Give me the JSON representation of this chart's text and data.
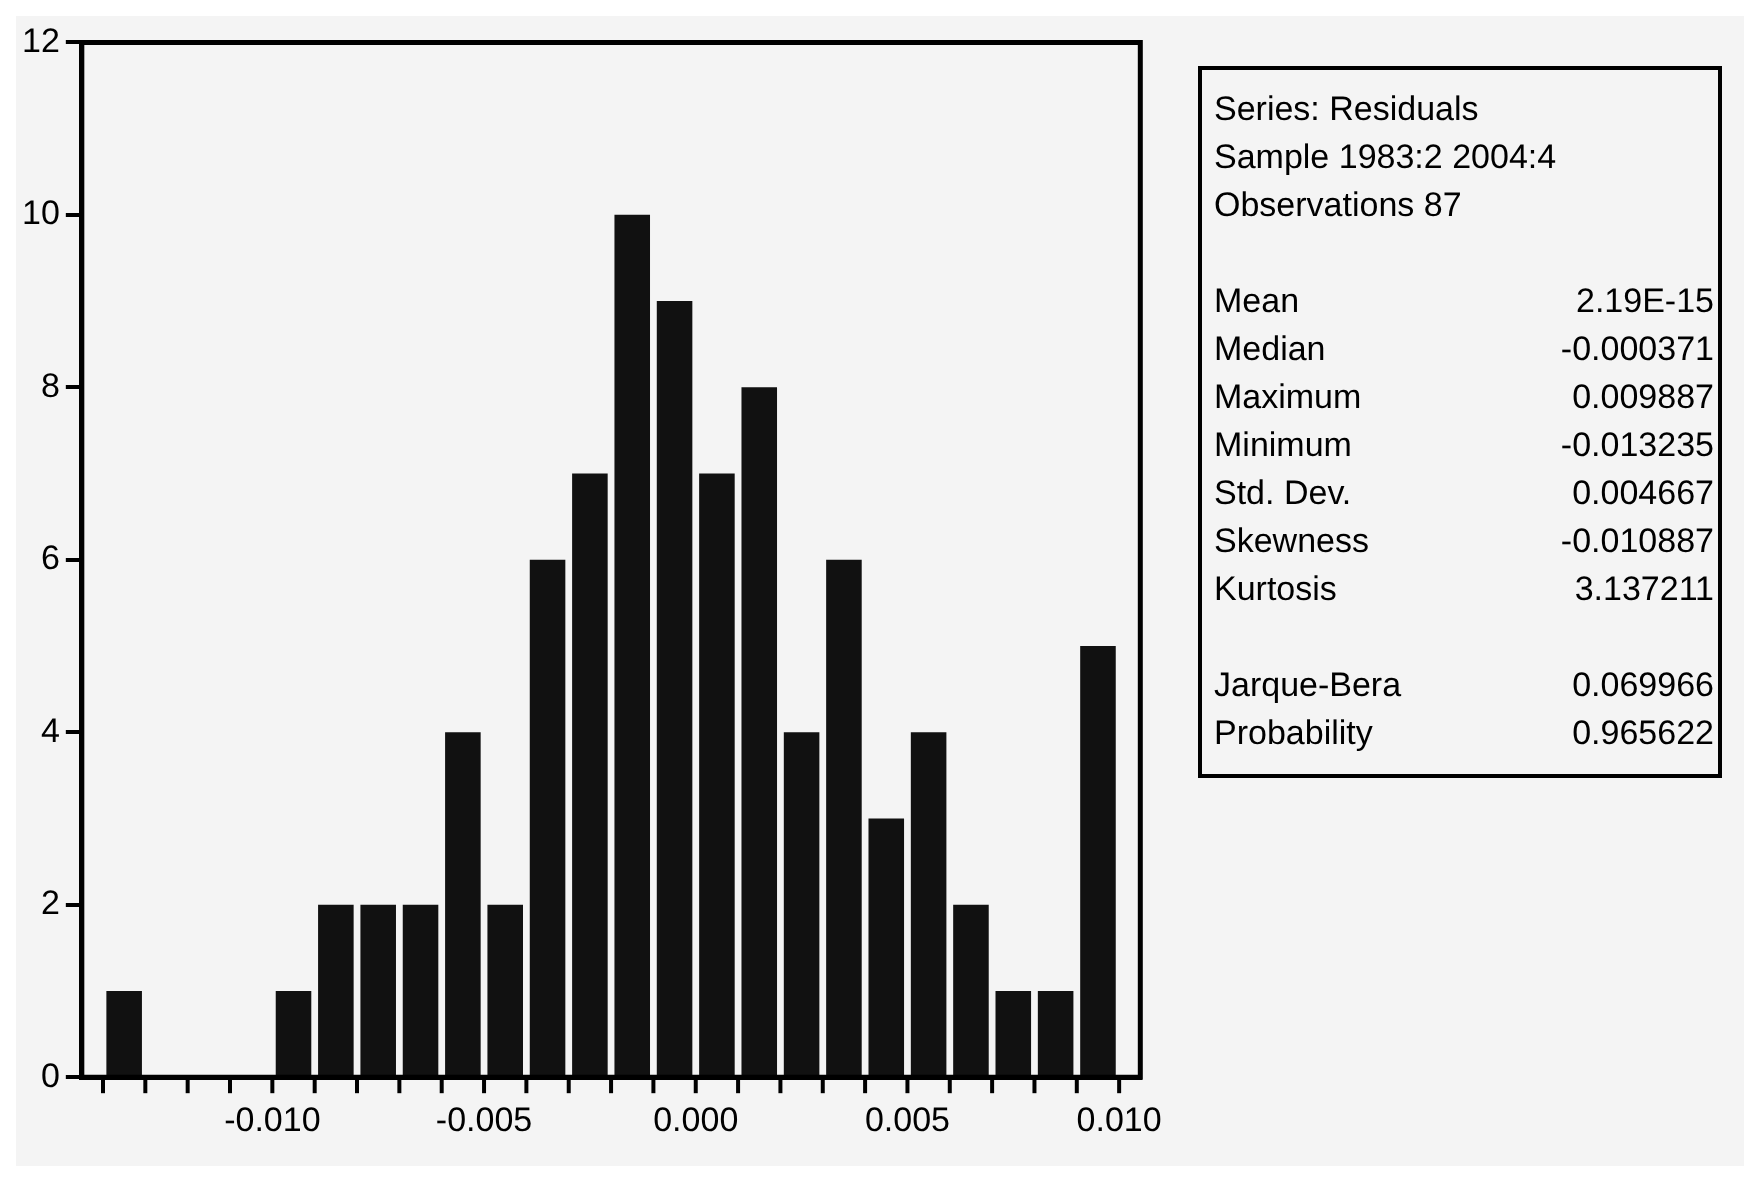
{
  "chart_data": {
    "type": "histogram",
    "bins": [
      -0.014,
      -0.013,
      -0.012,
      -0.011,
      -0.01,
      -0.009,
      -0.008,
      -0.007,
      -0.006,
      -0.005,
      -0.004,
      -0.003,
      -0.002,
      -0.001,
      0,
      0.001,
      0.002,
      0.003,
      0.004,
      0.005,
      0.006,
      0.007,
      0.008,
      0.009,
      0.01
    ],
    "values": [
      1,
      0,
      0,
      0,
      1,
      2,
      2,
      2,
      4,
      2,
      6,
      7,
      10,
      9,
      7,
      8,
      4,
      6,
      3,
      4,
      2,
      1,
      1,
      5
    ],
    "color": "#111111",
    "xlim": [
      -0.0145,
      0.0105
    ],
    "xticks": [
      {
        "value": -0.014,
        "label": null
      },
      {
        "value": -0.013,
        "label": null
      },
      {
        "value": -0.012,
        "label": null
      },
      {
        "value": -0.011,
        "label": null
      },
      {
        "value": -0.01,
        "label": "-0.010"
      },
      {
        "value": -0.009,
        "label": null
      },
      {
        "value": -0.008,
        "label": null
      },
      {
        "value": -0.007,
        "label": null
      },
      {
        "value": -0.006,
        "label": null
      },
      {
        "value": -0.005,
        "label": "-0.005"
      },
      {
        "value": -0.004,
        "label": null
      },
      {
        "value": -0.003,
        "label": null
      },
      {
        "value": -0.002,
        "label": null
      },
      {
        "value": -0.001,
        "label": null
      },
      {
        "value": 0,
        "label": "0.000"
      },
      {
        "value": 0.001,
        "label": null
      },
      {
        "value": 0.002,
        "label": null
      },
      {
        "value": 0.003,
        "label": null
      },
      {
        "value": 0.004,
        "label": null
      },
      {
        "value": 0.005,
        "label": "0.005"
      },
      {
        "value": 0.006,
        "label": null
      },
      {
        "value": 0.007,
        "label": null
      },
      {
        "value": 0.008,
        "label": null
      },
      {
        "value": 0.009,
        "label": null
      },
      {
        "value": 0.01,
        "label": "0.010"
      }
    ],
    "ylim": [
      0,
      12
    ],
    "yticks": [
      0,
      2,
      4,
      6,
      8,
      10,
      12
    ],
    "grid": false,
    "legend": false,
    "annotations": [
      "Series: Residuals",
      "Sample 1983:2 2004:4",
      "Observations 87",
      "Mean\t2.19E-15",
      "Median\t-0.000371",
      "Maximum\t0.009887",
      "Minimum\t-0.013235",
      "Std. Dev.\t0.004667",
      "Skewness\t-0.010887",
      "Kurtosis\t3.137211",
      "Jarque-Bera\t0.069966",
      "Probability\t0.965622"
    ]
  }
}
